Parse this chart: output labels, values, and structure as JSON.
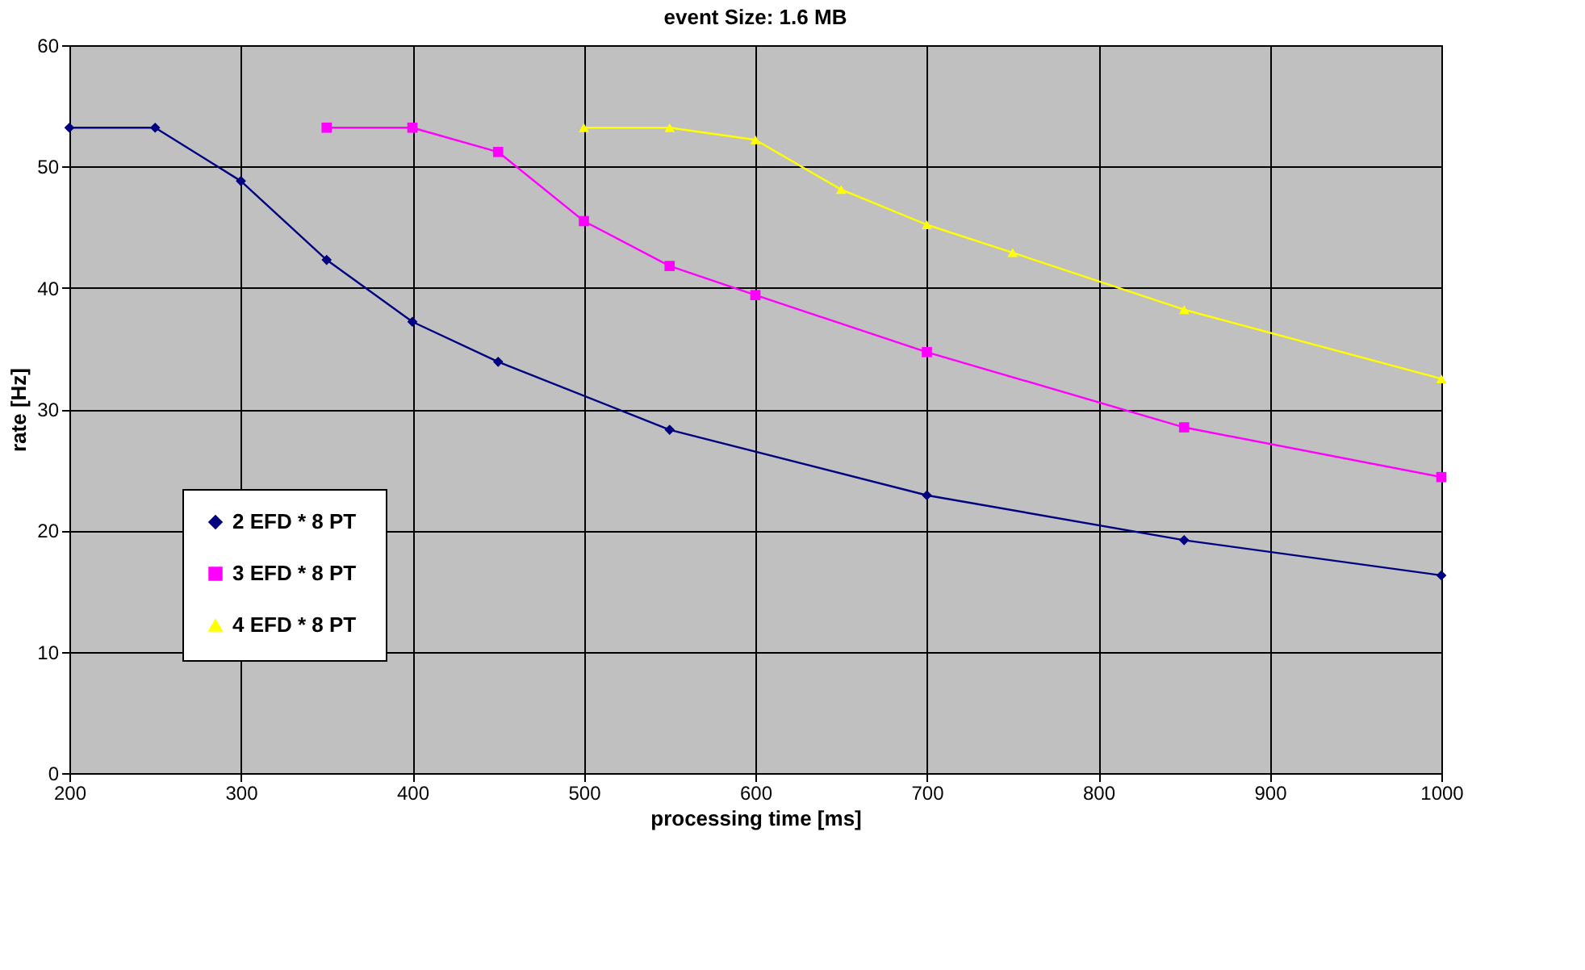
{
  "chart_data": {
    "type": "line",
    "title": "event Size: 1.6 MB",
    "xlabel": "processing time [ms]",
    "ylabel": "rate [Hz]",
    "xlim": [
      200,
      1000
    ],
    "xticks": [
      200,
      300,
      400,
      500,
      600,
      700,
      800,
      900,
      1000
    ],
    "ylim": [
      0,
      60
    ],
    "yticks": [
      0,
      10,
      20,
      30,
      40,
      50,
      60
    ],
    "grid": true,
    "legend": "bottom left",
    "series": [
      {
        "name": "2 EFD *  8 PT",
        "color": "#000080",
        "marker": "diamond",
        "x": [
          200,
          250,
          300,
          350,
          400,
          450,
          550,
          700,
          850,
          1000
        ],
        "values": [
          53.2,
          53.2,
          48.8,
          42.3,
          37.2,
          33.9,
          28.3,
          22.9,
          19.2,
          16.3
        ]
      },
      {
        "name": "3 EFD *  8 PT",
        "color": "#ff00ff",
        "marker": "square",
        "x": [
          350,
          400,
          450,
          500,
          550,
          600,
          700,
          850,
          1000
        ],
        "values": [
          53.2,
          53.2,
          51.2,
          45.5,
          41.8,
          39.4,
          34.7,
          28.5,
          24.4
        ]
      },
      {
        "name": "4 EFD *  8 PT",
        "color": "#ffff00",
        "marker": "triangle",
        "x": [
          500,
          550,
          600,
          650,
          700,
          750,
          850,
          1000
        ],
        "values": [
          53.2,
          53.2,
          52.2,
          48.1,
          45.2,
          42.9,
          38.2,
          32.5
        ]
      }
    ]
  }
}
